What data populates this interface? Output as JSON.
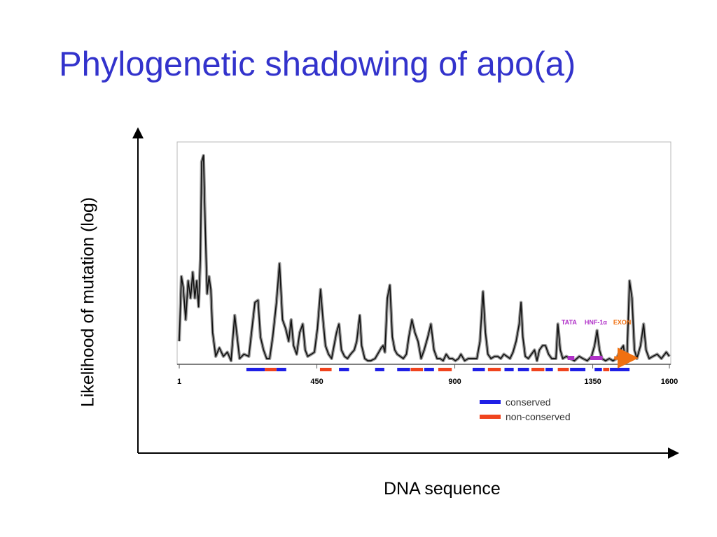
{
  "slide": {
    "title": "Phylogenetic shadowing of apo(a)",
    "ylabel": "Likelihood of mutation (log)",
    "xlabel": "DNA sequence"
  },
  "colors": {
    "title": "#3333cc",
    "conserved": "#1f1fe6",
    "non_conserved": "#f0441e",
    "tata": "#b030c8",
    "hnf": "#b030c8",
    "exon": "#f07010",
    "trace": "#111111",
    "trace_light": "#9a9a9a"
  },
  "chart_data": {
    "type": "line",
    "x_range": [
      1,
      1600
    ],
    "ticks": [
      {
        "value": 1,
        "label": "1"
      },
      {
        "value": 450,
        "label": "450"
      },
      {
        "value": 900,
        "label": "900"
      },
      {
        "value": 1350,
        "label": "1350"
      },
      {
        "value": 1600,
        "label": "1600"
      }
    ],
    "y_range": [
      0,
      100
    ],
    "series": [
      {
        "points": [
          [
            1,
            10
          ],
          [
            8,
            40
          ],
          [
            14,
            35
          ],
          [
            22,
            20
          ],
          [
            30,
            38
          ],
          [
            38,
            30
          ],
          [
            45,
            42
          ],
          [
            52,
            30
          ],
          [
            58,
            38
          ],
          [
            64,
            26
          ],
          [
            70,
            48
          ],
          [
            74,
            93
          ],
          [
            80,
            96
          ],
          [
            86,
            62
          ],
          [
            92,
            32
          ],
          [
            98,
            40
          ],
          [
            104,
            34
          ],
          [
            110,
            14
          ],
          [
            120,
            3
          ],
          [
            132,
            7
          ],
          [
            145,
            3
          ],
          [
            158,
            5
          ],
          [
            170,
            1
          ],
          [
            182,
            22
          ],
          [
            190,
            12
          ],
          [
            198,
            2
          ],
          [
            212,
            4
          ],
          [
            228,
            3
          ],
          [
            240,
            18
          ],
          [
            248,
            28
          ],
          [
            258,
            29
          ],
          [
            266,
            12
          ],
          [
            276,
            6
          ],
          [
            286,
            2
          ],
          [
            296,
            2
          ],
          [
            306,
            12
          ],
          [
            318,
            28
          ],
          [
            328,
            46
          ],
          [
            338,
            20
          ],
          [
            348,
            16
          ],
          [
            358,
            10
          ],
          [
            366,
            20
          ],
          [
            374,
            8
          ],
          [
            384,
            4
          ],
          [
            394,
            14
          ],
          [
            404,
            18
          ],
          [
            412,
            6
          ],
          [
            420,
            3
          ],
          [
            432,
            4
          ],
          [
            442,
            5
          ],
          [
            452,
            16
          ],
          [
            462,
            34
          ],
          [
            470,
            20
          ],
          [
            478,
            8
          ],
          [
            488,
            4
          ],
          [
            498,
            2
          ],
          [
            506,
            8
          ],
          [
            514,
            14
          ],
          [
            522,
            18
          ],
          [
            530,
            6
          ],
          [
            540,
            3
          ],
          [
            550,
            2
          ],
          [
            560,
            4
          ],
          [
            572,
            6
          ],
          [
            580,
            10
          ],
          [
            590,
            22
          ],
          [
            596,
            8
          ],
          [
            606,
            2
          ],
          [
            616,
            1
          ],
          [
            626,
            1
          ],
          [
            640,
            2
          ],
          [
            652,
            5
          ],
          [
            660,
            7
          ],
          [
            666,
            8
          ],
          [
            672,
            5
          ],
          [
            680,
            30
          ],
          [
            688,
            36
          ],
          [
            696,
            12
          ],
          [
            704,
            6
          ],
          [
            712,
            4
          ],
          [
            722,
            3
          ],
          [
            732,
            2
          ],
          [
            742,
            4
          ],
          [
            750,
            12
          ],
          [
            760,
            20
          ],
          [
            770,
            14
          ],
          [
            780,
            10
          ],
          [
            790,
            2
          ],
          [
            800,
            6
          ],
          [
            812,
            12
          ],
          [
            822,
            18
          ],
          [
            832,
            6
          ],
          [
            842,
            2
          ],
          [
            852,
            2
          ],
          [
            862,
            1
          ],
          [
            872,
            4
          ],
          [
            882,
            2
          ],
          [
            892,
            2
          ],
          [
            902,
            1
          ],
          [
            912,
            2
          ],
          [
            920,
            4
          ],
          [
            932,
            1
          ],
          [
            944,
            2
          ],
          [
            952,
            2
          ],
          [
            962,
            2
          ],
          [
            972,
            2
          ],
          [
            982,
            10
          ],
          [
            992,
            33
          ],
          [
            1000,
            14
          ],
          [
            1008,
            4
          ],
          [
            1018,
            2
          ],
          [
            1030,
            3
          ],
          [
            1040,
            3
          ],
          [
            1050,
            2
          ],
          [
            1060,
            4
          ],
          [
            1070,
            3
          ],
          [
            1080,
            2
          ],
          [
            1090,
            5
          ],
          [
            1100,
            10
          ],
          [
            1110,
            18
          ],
          [
            1116,
            28
          ],
          [
            1122,
            12
          ],
          [
            1130,
            3
          ],
          [
            1140,
            2
          ],
          [
            1150,
            4
          ],
          [
            1160,
            6
          ],
          [
            1168,
            1
          ],
          [
            1176,
            6
          ],
          [
            1186,
            8
          ],
          [
            1196,
            8
          ],
          [
            1206,
            4
          ],
          [
            1216,
            2
          ],
          [
            1230,
            2
          ],
          [
            1236,
            18
          ],
          [
            1244,
            6
          ],
          [
            1252,
            2
          ],
          [
            1264,
            3
          ],
          [
            1276,
            2
          ],
          [
            1290,
            1
          ],
          [
            1306,
            3
          ],
          [
            1318,
            2
          ],
          [
            1332,
            1
          ],
          [
            1346,
            3
          ],
          [
            1356,
            8
          ],
          [
            1364,
            15
          ],
          [
            1372,
            6
          ],
          [
            1380,
            2
          ],
          [
            1392,
            1
          ],
          [
            1404,
            2
          ],
          [
            1416,
            1
          ],
          [
            1428,
            2
          ],
          [
            1440,
            6
          ],
          [
            1450,
            8
          ],
          [
            1456,
            1
          ],
          [
            1462,
            4
          ],
          [
            1470,
            38
          ],
          [
            1478,
            30
          ],
          [
            1486,
            6
          ],
          [
            1494,
            2
          ],
          [
            1506,
            8
          ],
          [
            1516,
            18
          ],
          [
            1524,
            6
          ],
          [
            1534,
            2
          ],
          [
            1546,
            3
          ],
          [
            1560,
            4
          ],
          [
            1574,
            2
          ],
          [
            1590,
            5
          ],
          [
            1600,
            3
          ]
        ]
      }
    ],
    "conserved_segments": [
      [
        220,
        280
      ],
      [
        318,
        350
      ],
      [
        522,
        555
      ],
      [
        640,
        670
      ],
      [
        712,
        754
      ],
      [
        800,
        832
      ],
      [
        958,
        998
      ],
      [
        1062,
        1092
      ],
      [
        1106,
        1142
      ],
      [
        1196,
        1220
      ],
      [
        1276,
        1326
      ],
      [
        1356,
        1380
      ],
      [
        1406,
        1470
      ]
    ],
    "non_conserved_segments": [
      [
        280,
        318
      ],
      [
        460,
        498
      ],
      [
        756,
        796
      ],
      [
        846,
        890
      ],
      [
        1008,
        1050
      ],
      [
        1150,
        1192
      ],
      [
        1236,
        1272
      ],
      [
        1384,
        1404
      ]
    ],
    "annotations": [
      {
        "label": "TATA",
        "x": 1273,
        "color_key": "tata",
        "bar": [
          1268,
          1290
        ]
      },
      {
        "label": "HNF-1α",
        "x": 1360,
        "color_key": "hnf",
        "bar": [
          1342,
          1382
        ]
      },
      {
        "label": "EXON",
        "x": 1446,
        "color_key": "exon",
        "bar": [
          1420,
          1474
        ]
      }
    ],
    "legend": [
      {
        "label": "conserved",
        "color_key": "conserved"
      },
      {
        "label": "non-conserved",
        "color_key": "non_conserved"
      }
    ]
  }
}
